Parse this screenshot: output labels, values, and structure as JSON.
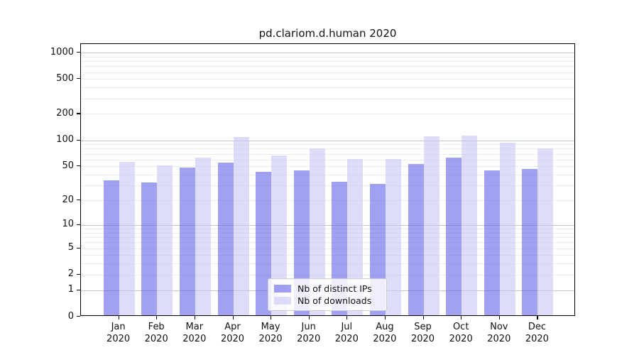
{
  "title": "pd.clariom.d.human 2020",
  "chart_data": {
    "type": "bar",
    "categories": [
      "Jan",
      "Feb",
      "Mar",
      "Apr",
      "May",
      "Jun",
      "Jul",
      "Aug",
      "Sep",
      "Oct",
      "Nov",
      "Dec"
    ],
    "category_year": "2020",
    "series": [
      {
        "name": "Nb of distinct IPs",
        "color": "rgba(104,104,232,0.62)",
        "values": [
          33,
          31,
          47,
          53,
          42,
          43,
          32,
          30,
          51,
          61,
          43,
          45
        ]
      },
      {
        "name": "Nb of downloads",
        "color": "rgba(200,200,245,0.62)",
        "values": [
          54,
          49,
          61,
          105,
          64,
          78,
          58,
          58,
          107,
          109,
          91,
          77
        ]
      }
    ],
    "yticks": [
      0,
      1,
      2,
      5,
      10,
      20,
      50,
      100,
      200,
      500,
      1000
    ],
    "minor_gridlines": [
      2,
      3,
      4,
      5,
      6,
      7,
      8,
      9,
      20,
      30,
      40,
      50,
      60,
      70,
      80,
      90,
      200,
      300,
      400,
      500,
      600,
      700,
      800,
      900
    ],
    "major_gridlines": [
      1,
      10,
      100,
      1000
    ],
    "scale": "log1p",
    "ylim": [
      0,
      1250
    ],
    "grid": "horizontal",
    "legend_position": "bottom-center",
    "colors": {
      "ips_bar": "rgba(104,104,232,0.62)",
      "downloads_bar": "rgba(200,200,245,0.62)",
      "major_grid": "#c3c3c3",
      "minor_grid": "#ececec"
    }
  }
}
